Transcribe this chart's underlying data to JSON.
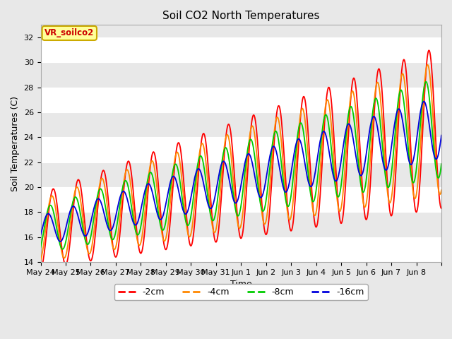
{
  "title": "Soil CO2 North Temperatures",
  "xlabel": "Time",
  "ylabel": "Soil Temperatures (C)",
  "ylim": [
    14,
    33
  ],
  "yticks": [
    14,
    16,
    18,
    20,
    22,
    24,
    26,
    28,
    30,
    32
  ],
  "colors": {
    "-2cm": "#ff0000",
    "-4cm": "#ff8800",
    "-8cm": "#00cc00",
    "-16cm": "#0000dd"
  },
  "legend_label": "VR_soilco2",
  "legend_bg": "#ffff99",
  "legend_border": "#ccaa00",
  "bg_color": "#e8e8e8",
  "plot_bg": "#e8e8e8",
  "grid_color": "#ffffff",
  "annotation_color": "#cc0000",
  "tick_labels": [
    "May 24",
    "May 25",
    "May 26",
    "May 27",
    "May 28",
    "May 29",
    "May 30",
    "May 31",
    "Jun 1",
    "Jun 2",
    "Jun 3",
    "Jun 4",
    "Jun 5",
    "Jun 6",
    "Jun 7",
    "Jun 8"
  ]
}
